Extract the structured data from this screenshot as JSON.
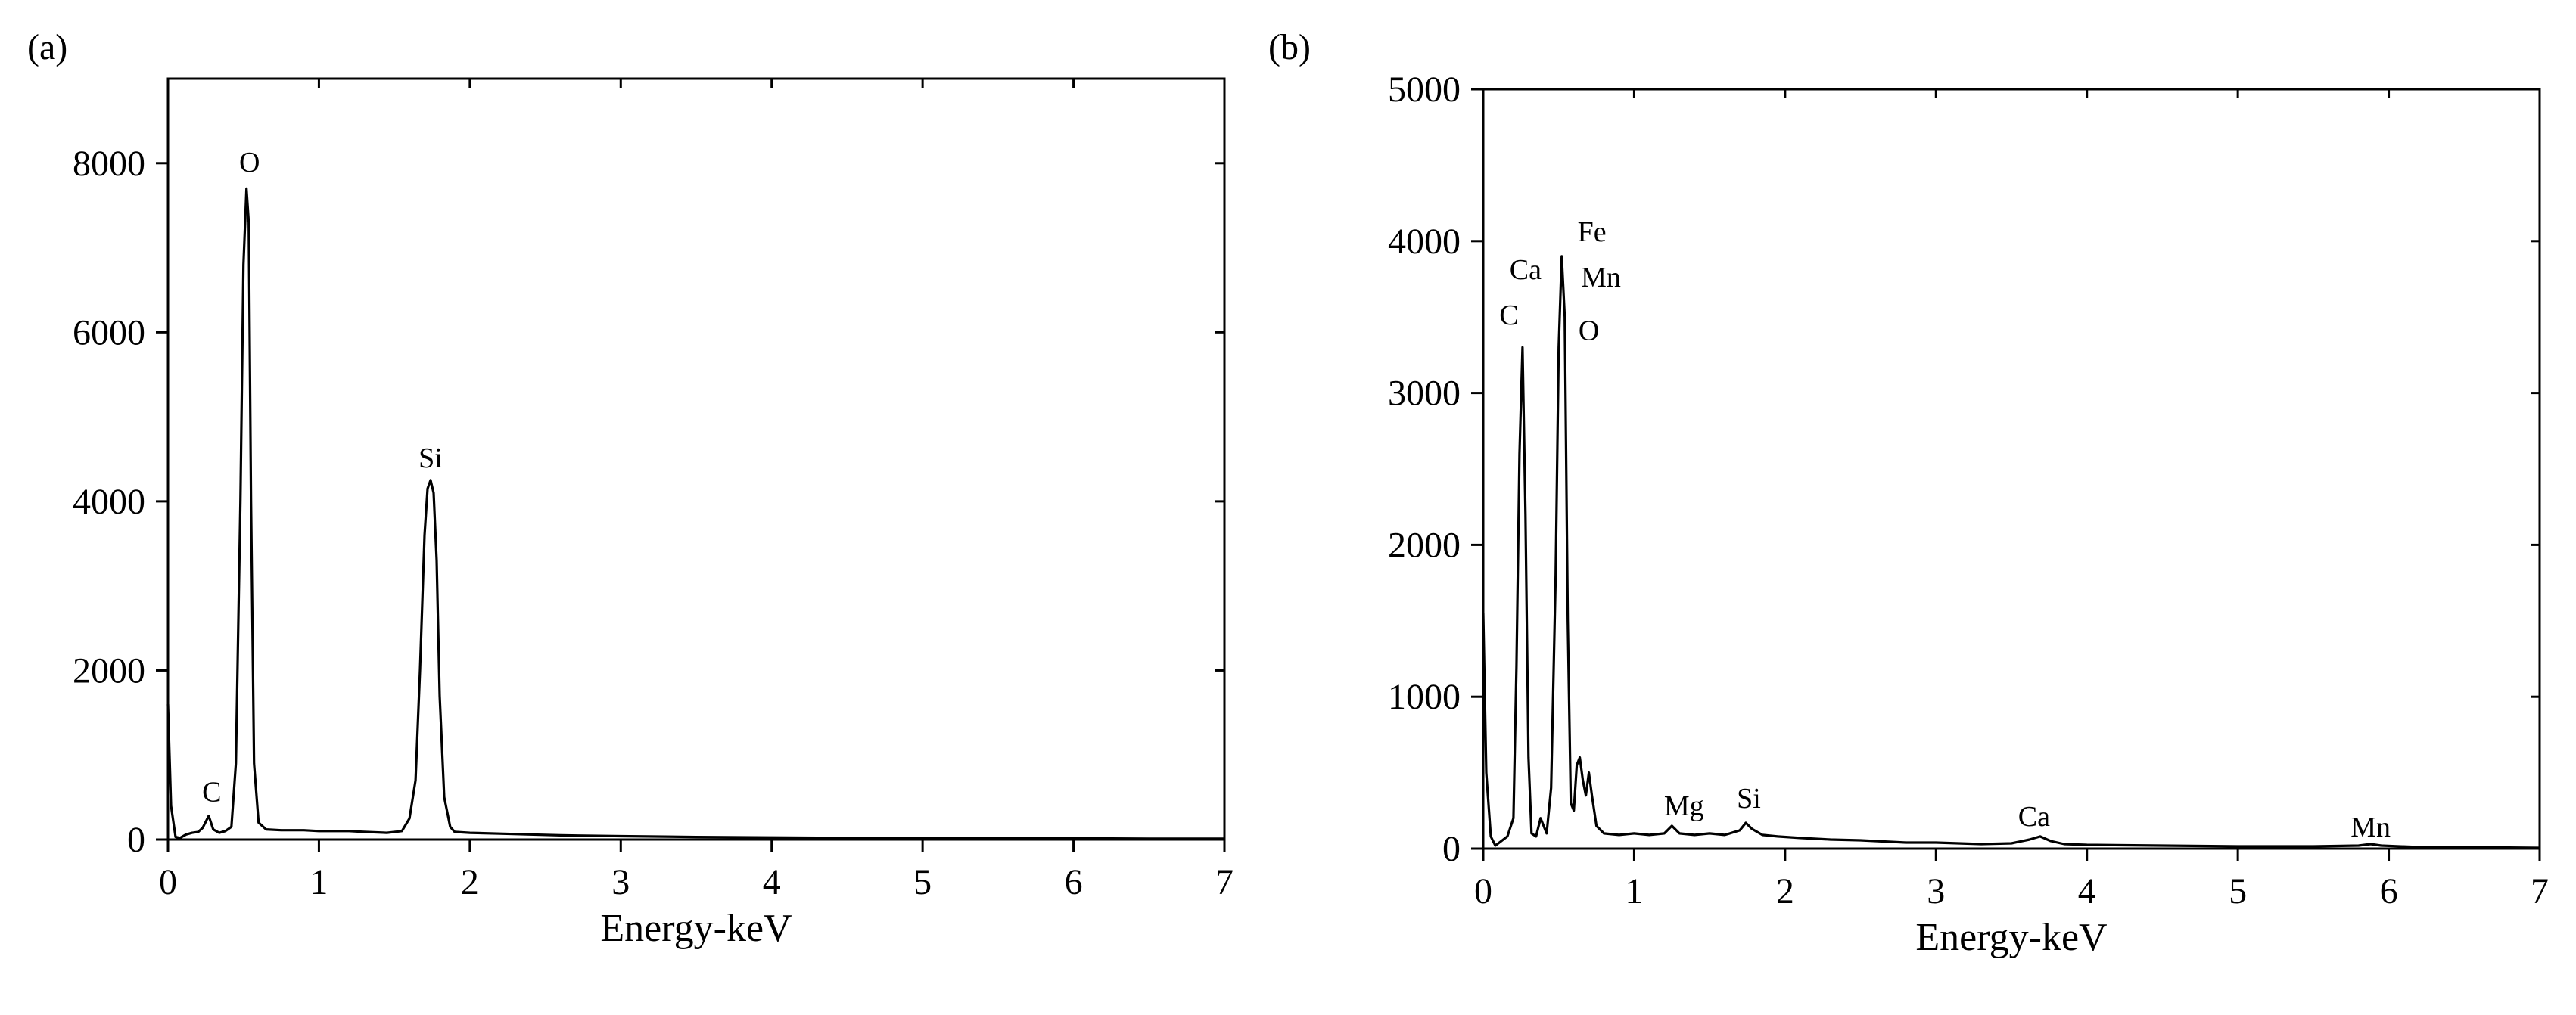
{
  "chart_data": [
    {
      "type": "line",
      "panel_label": "(a)",
      "xlabel": "Energy-keV",
      "ylabel": "",
      "xlim": [
        0,
        7
      ],
      "ylim": [
        0,
        9000
      ],
      "x_ticks": [
        0,
        1,
        2,
        3,
        4,
        5,
        6,
        7
      ],
      "y_ticks": [
        0,
        2000,
        4000,
        6000,
        8000
      ],
      "grid": false,
      "legend": "none",
      "series": [
        {
          "x": [
            0,
            0.02,
            0.05,
            0.08,
            0.12,
            0.16,
            0.2,
            0.23,
            0.27,
            0.3,
            0.34,
            0.38,
            0.42,
            0.45,
            0.48,
            0.5,
            0.52,
            0.535,
            0.55,
            0.57,
            0.6,
            0.65,
            0.75,
            0.9,
            1.0,
            1.1,
            1.2,
            1.3,
            1.45,
            1.55,
            1.6,
            1.64,
            1.67,
            1.7,
            1.72,
            1.74,
            1.76,
            1.78,
            1.8,
            1.83,
            1.87,
            1.9,
            2.0,
            2.2,
            2.4,
            2.6,
            3.0,
            3.5,
            4.0,
            4.5,
            5.0,
            5.5,
            6.0,
            6.5,
            7.0
          ],
          "y": [
            1600,
            400,
            30,
            20,
            60,
            80,
            90,
            140,
            280,
            120,
            80,
            100,
            150,
            900,
            4000,
            6800,
            7700,
            7300,
            4000,
            900,
            200,
            120,
            110,
            110,
            100,
            100,
            100,
            90,
            80,
            100,
            250,
            700,
            2000,
            3600,
            4150,
            4250,
            4100,
            3300,
            1700,
            500,
            150,
            90,
            80,
            70,
            60,
            50,
            40,
            30,
            25,
            20,
            20,
            15,
            15,
            10,
            10
          ]
        }
      ],
      "annotations": [
        {
          "text": "O",
          "x": 0.54,
          "y": 7900
        },
        {
          "text": "Si",
          "x": 1.74,
          "y": 4400
        },
        {
          "text": "C",
          "x": 0.29,
          "y": 450
        }
      ]
    },
    {
      "type": "line",
      "panel_label": "(b)",
      "xlabel": "Energy-keV",
      "ylabel": "",
      "xlim": [
        0,
        7
      ],
      "ylim": [
        0,
        5000
      ],
      "x_ticks": [
        0,
        1,
        2,
        3,
        4,
        5,
        6,
        7
      ],
      "y_ticks": [
        0,
        1000,
        2000,
        3000,
        4000,
        5000
      ],
      "grid": false,
      "legend": "none",
      "series": [
        {
          "x": [
            0,
            0.02,
            0.05,
            0.08,
            0.12,
            0.16,
            0.2,
            0.22,
            0.24,
            0.26,
            0.28,
            0.3,
            0.32,
            0.35,
            0.38,
            0.42,
            0.45,
            0.48,
            0.5,
            0.52,
            0.54,
            0.56,
            0.58,
            0.6,
            0.62,
            0.64,
            0.66,
            0.68,
            0.7,
            0.72,
            0.75,
            0.8,
            0.9,
            1.0,
            1.1,
            1.2,
            1.25,
            1.3,
            1.4,
            1.5,
            1.6,
            1.7,
            1.74,
            1.78,
            1.85,
            1.95,
            2.1,
            2.3,
            2.5,
            2.8,
            3.0,
            3.3,
            3.5,
            3.62,
            3.69,
            3.76,
            3.85,
            4.0,
            4.5,
            5.0,
            5.5,
            5.8,
            5.88,
            5.95,
            6.2,
            6.5,
            7.0
          ],
          "y": [
            1550,
            500,
            80,
            20,
            50,
            80,
            200,
            1200,
            2600,
            3300,
            2200,
            600,
            100,
            80,
            200,
            100,
            400,
            1800,
            3300,
            3900,
            3500,
            1500,
            300,
            250,
            550,
            600,
            450,
            350,
            500,
            350,
            150,
            100,
            90,
            100,
            90,
            100,
            150,
            100,
            90,
            100,
            90,
            120,
            170,
            130,
            90,
            80,
            70,
            60,
            55,
            40,
            40,
            30,
            35,
            60,
            80,
            50,
            30,
            25,
            20,
            15,
            15,
            20,
            30,
            20,
            10,
            10,
            5
          ]
        }
      ],
      "annotations": [
        {
          "text": "Fe",
          "x": 0.72,
          "y": 4000
        },
        {
          "text": "Mn",
          "x": 0.78,
          "y": 3700
        },
        {
          "text": "O",
          "x": 0.7,
          "y": 3350
        },
        {
          "text": "Ca",
          "x": 0.28,
          "y": 3750
        },
        {
          "text": "C",
          "x": 0.17,
          "y": 3450
        },
        {
          "text": "Mg",
          "x": 1.33,
          "y": 220
        },
        {
          "text": "Si",
          "x": 1.76,
          "y": 270
        },
        {
          "text": "Ca",
          "x": 3.65,
          "y": 150
        },
        {
          "text": "Mn",
          "x": 5.88,
          "y": 80
        }
      ]
    }
  ]
}
